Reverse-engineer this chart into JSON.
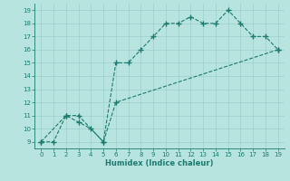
{
  "line1_x": [
    0,
    1,
    2,
    3,
    4,
    5,
    6,
    7,
    8,
    9,
    10,
    11,
    12,
    13,
    14,
    15,
    16,
    17,
    18,
    19
  ],
  "line1_y": [
    9,
    9,
    11,
    10.5,
    10,
    9,
    15,
    15,
    16,
    17,
    18,
    18,
    18.5,
    18,
    18,
    19,
    18,
    17,
    17,
    16
  ],
  "line2_x": [
    0,
    2,
    3,
    5,
    6,
    19
  ],
  "line2_y": [
    9,
    11,
    11,
    9,
    12,
    16
  ],
  "color": "#1a7a6e",
  "bg_color": "#b8e4e0",
  "grid_color": "#9ecfca",
  "xlabel": "Humidex (Indice chaleur)",
  "xlim": [
    -0.5,
    19.5
  ],
  "ylim": [
    8.5,
    19.5
  ],
  "xticks": [
    0,
    1,
    2,
    3,
    4,
    5,
    6,
    7,
    8,
    9,
    10,
    11,
    12,
    13,
    14,
    15,
    16,
    17,
    18,
    19
  ],
  "yticks": [
    9,
    10,
    11,
    12,
    13,
    14,
    15,
    16,
    17,
    18,
    19
  ],
  "marker": "+",
  "markersize": 4,
  "linewidth": 0.8,
  "linestyle": "--",
  "tick_fontsize": 5,
  "xlabel_fontsize": 6,
  "xlabel_fontweight": "bold"
}
